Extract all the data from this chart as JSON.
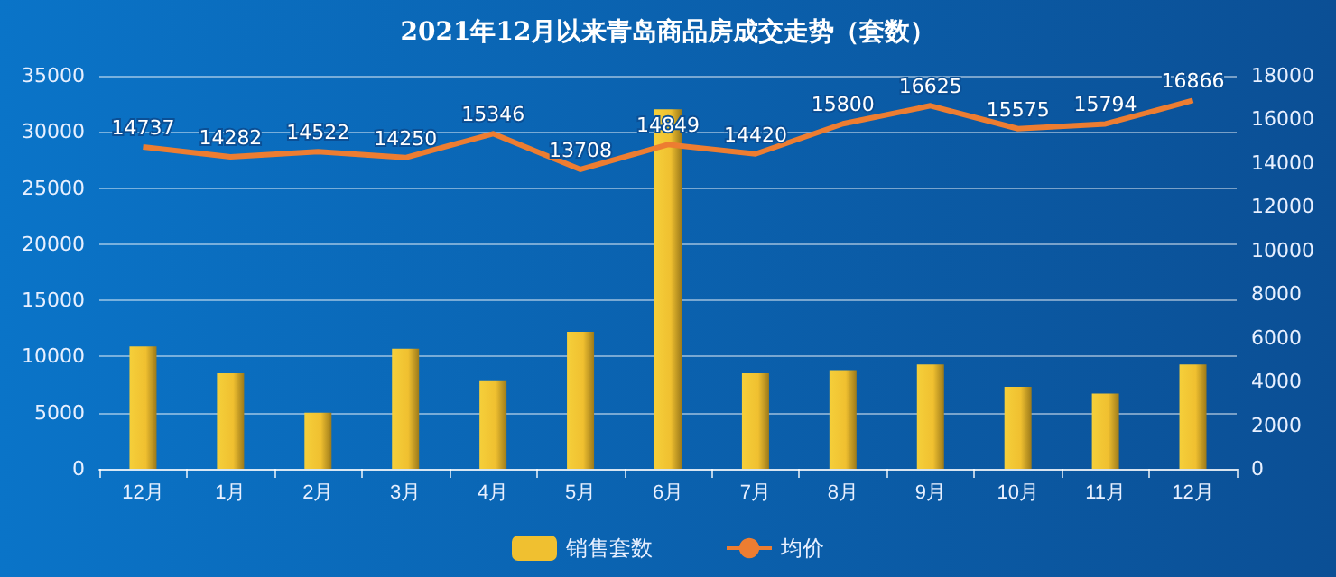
{
  "chart_data": {
    "type": "bar",
    "title": "2021年12月以来青岛商品房成交走势（套数）",
    "categories": [
      "12月",
      "1月",
      "2月",
      "3月",
      "4月",
      "5月",
      "6月",
      "7月",
      "8月",
      "9月",
      "10月",
      "11月",
      "12月"
    ],
    "series": [
      {
        "name": "销售套数",
        "color": "#f0c030",
        "values": [
          10900,
          8500,
          5000,
          10700,
          7800,
          12200,
          32000,
          8500,
          8800,
          9300,
          7300,
          6700,
          9300
        ]
      },
      {
        "name": "均价",
        "type": "line",
        "axis": "y2",
        "color": "#ed7d31",
        "values": [
          14737,
          14282,
          14522,
          14250,
          15346,
          13708,
          14849,
          14420,
          15800,
          16625,
          15575,
          15794,
          16866
        ],
        "data_labels": true
      }
    ],
    "ylim": [
      0,
      35000
    ],
    "yticks": [
      0,
      5000,
      10000,
      15000,
      20000,
      25000,
      30000,
      35000
    ],
    "y2lim": [
      0,
      18000
    ],
    "y2ticks": [
      0,
      2000,
      4000,
      6000,
      8000,
      10000,
      12000,
      14000,
      16000,
      18000
    ],
    "grid": "y",
    "legend": "bottom",
    "marker": "none"
  }
}
